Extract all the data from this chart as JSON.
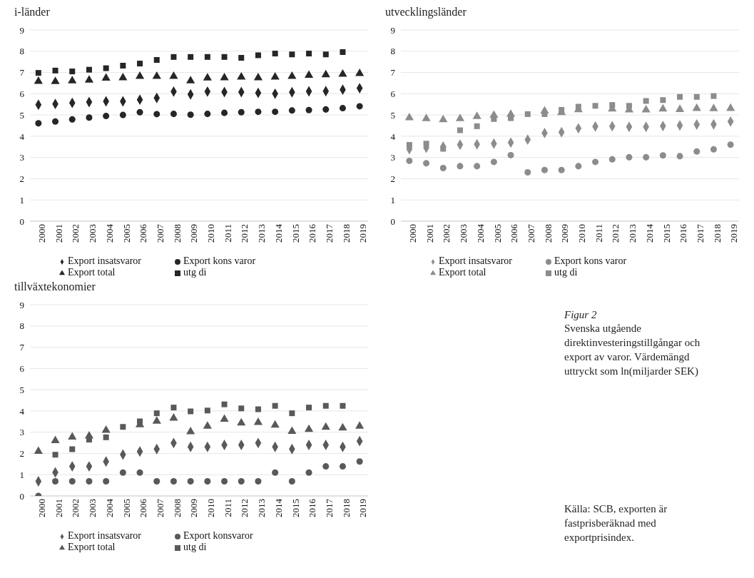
{
  "chart_data": [
    {
      "type": "scatter",
      "title": "i-länder",
      "categories": [
        "2000",
        "2001",
        "2002",
        "2003",
        "2004",
        "2005",
        "2006",
        "2007",
        "2008",
        "2009",
        "2010",
        "2011",
        "2012",
        "2013",
        "2014",
        "2015",
        "2016",
        "2017",
        "2018",
        "2019"
      ],
      "ylim": [
        0,
        9
      ],
      "yticks": [
        0,
        1,
        2,
        3,
        4,
        5,
        6,
        7,
        8,
        9
      ],
      "grid": "y",
      "legend": "bottom",
      "series": [
        {
          "name": "Export total",
          "color": "#262626",
          "marker": "triangle",
          "values": [
            6.58,
            6.57,
            6.61,
            6.64,
            6.73,
            6.75,
            6.82,
            6.82,
            6.82,
            6.61,
            6.74,
            6.75,
            6.78,
            6.75,
            6.78,
            6.82,
            6.87,
            6.89,
            6.92,
            6.95
          ]
        },
        {
          "name": "Export insatsvaror",
          "color": "#262626",
          "marker": "diamond",
          "values": [
            5.48,
            5.52,
            5.57,
            5.61,
            5.64,
            5.64,
            5.72,
            5.8,
            6.1,
            5.97,
            6.1,
            6.08,
            6.08,
            6.04,
            6.0,
            6.07,
            6.11,
            6.12,
            6.19,
            6.26
          ]
        },
        {
          "name": "Export kons varor",
          "color": "#262626",
          "marker": "circle",
          "values": [
            4.61,
            4.69,
            4.79,
            4.88,
            4.95,
            5.0,
            5.13,
            5.04,
            5.05,
            5.01,
            5.05,
            5.1,
            5.13,
            5.15,
            5.15,
            5.21,
            5.23,
            5.26,
            5.32,
            5.41
          ]
        },
        {
          "name": "utg di",
          "color": "#262626",
          "marker": "square",
          "values": [
            6.98,
            7.09,
            7.05,
            7.13,
            7.2,
            7.32,
            7.42,
            7.59,
            7.73,
            7.73,
            7.73,
            7.73,
            7.69,
            7.81,
            7.89,
            7.85,
            7.89,
            7.85,
            7.96,
            null
          ]
        }
      ]
    },
    {
      "type": "scatter",
      "title": "utvecklingsländer",
      "categories": [
        "2000",
        "2001",
        "2002",
        "2003",
        "2004",
        "2005",
        "2006",
        "2007",
        "2008",
        "2009",
        "2010",
        "2011",
        "2012",
        "2013",
        "2014",
        "2015",
        "2016",
        "2017",
        "2018",
        "2019"
      ],
      "ylim": [
        0,
        9
      ],
      "yticks": [
        0,
        1,
        2,
        3,
        4,
        5,
        6,
        7,
        8,
        9
      ],
      "grid": "y",
      "legend": "bottom",
      "series": [
        {
          "name": "Export total",
          "color": "#8c8c8c",
          "marker": "triangle",
          "values": [
            4.87,
            4.83,
            4.78,
            4.83,
            4.93,
            4.99,
            5.03,
            null,
            5.19,
            5.11,
            5.25,
            null,
            5.28,
            5.24,
            5.24,
            5.28,
            5.26,
            5.31,
            5.3,
            5.31
          ]
        },
        {
          "name": "Export insatsvaror",
          "color": "#8c8c8c",
          "marker": "diamond",
          "values": [
            3.39,
            3.46,
            3.51,
            3.6,
            3.62,
            3.65,
            3.7,
            3.84,
            4.15,
            4.19,
            4.37,
            4.46,
            4.47,
            4.44,
            4.44,
            4.48,
            4.51,
            4.55,
            4.56,
            4.69
          ]
        },
        {
          "name": "Export kons varor",
          "color": "#8c8c8c",
          "marker": "circle",
          "values": [
            2.84,
            2.73,
            2.5,
            2.59,
            2.59,
            2.79,
            3.11,
            2.3,
            2.41,
            2.41,
            2.59,
            2.79,
            2.91,
            3.01,
            3.01,
            3.1,
            3.06,
            3.28,
            3.38,
            3.6
          ]
        },
        {
          "name": "utg di",
          "color": "#8c8c8c",
          "marker": "square",
          "values": [
            3.59,
            3.65,
            3.41,
            4.28,
            4.47,
            4.81,
            4.85,
            5.04,
            5.04,
            5.24,
            5.39,
            5.43,
            5.47,
            5.43,
            5.66,
            5.7,
            5.85,
            5.85,
            5.89,
            null
          ]
        }
      ]
    },
    {
      "type": "scatter",
      "title": "tillväxtekonomier",
      "categories": [
        "2000",
        "2001",
        "2002",
        "2003",
        "2004",
        "2005",
        "2006",
        "2007",
        "2008",
        "2009",
        "2010",
        "2011",
        "2012",
        "2013",
        "2014",
        "2015",
        "2016",
        "2017",
        "2018",
        "2019"
      ],
      "ylim": [
        0,
        9
      ],
      "yticks": [
        0,
        1,
        2,
        3,
        4,
        5,
        6,
        7,
        8,
        9
      ],
      "grid": "y",
      "legend": "bottom",
      "series": [
        {
          "name": "Export total",
          "color": "#595959",
          "marker": "triangle",
          "values": [
            2.1,
            2.6,
            2.77,
            2.82,
            3.09,
            null,
            3.35,
            3.52,
            3.66,
            3.02,
            3.28,
            3.61,
            3.43,
            3.46,
            3.33,
            3.04,
            3.13,
            3.23,
            3.2,
            3.28
          ]
        },
        {
          "name": "Export insatsvaror",
          "color": "#595959",
          "marker": "diamond",
          "values": [
            0.69,
            1.11,
            1.39,
            1.39,
            1.62,
            1.95,
            2.09,
            2.21,
            2.49,
            2.31,
            2.31,
            2.4,
            2.4,
            2.49,
            2.31,
            2.21,
            2.4,
            2.4,
            2.31,
            2.58
          ]
        },
        {
          "name": "Export konsvaror",
          "color": "#595959",
          "marker": "circle",
          "values": [
            0,
            0.69,
            0.69,
            0.69,
            0.69,
            1.1,
            1.1,
            0.69,
            0.69,
            0.69,
            0.69,
            0.69,
            0.69,
            0.69,
            1.1,
            0.69,
            1.1,
            1.39,
            1.39,
            1.62
          ]
        },
        {
          "name": "utg di",
          "color": "#595959",
          "marker": "square",
          "values": [
            null,
            1.94,
            2.2,
            2.65,
            2.76,
            3.25,
            3.51,
            3.89,
            4.16,
            3.98,
            4.02,
            4.31,
            4.12,
            4.08,
            4.24,
            3.89,
            4.16,
            4.24,
            4.24,
            null
          ]
        }
      ]
    },
    {
      "type": "other",
      "title": "Figur 2",
      "subtitle": "Svenska utgående direktinvesteringstillgångar och export av varor. Värdemängd uttryckt som ln(miljarder SEK)",
      "annotations": [
        "Källa: SCB, exporten är fastprisberäknad med exportprisindex."
      ]
    }
  ]
}
